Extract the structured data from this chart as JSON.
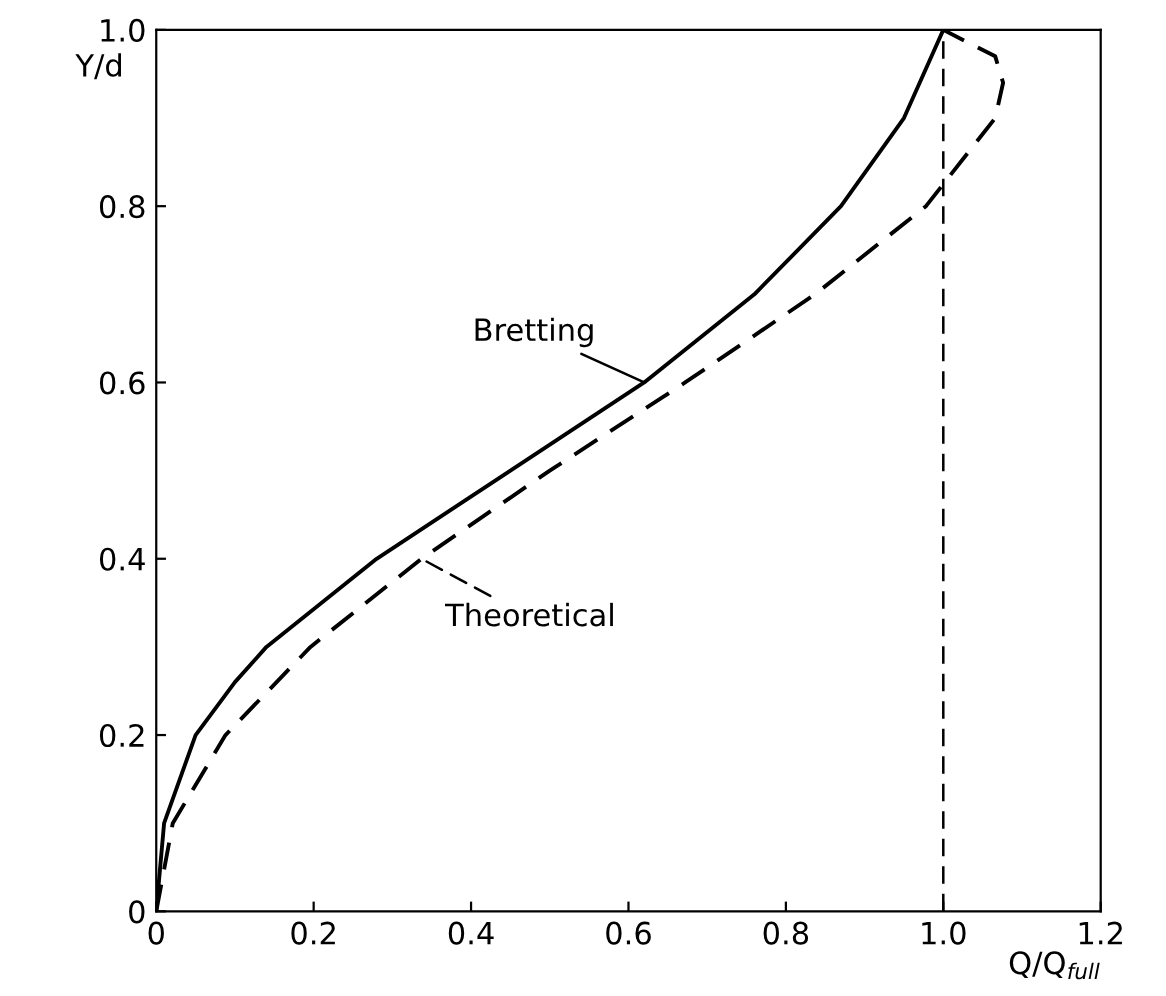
{
  "chart_data": {
    "type": "line",
    "xlabel": "Q/Q$_{full}$",
    "ylabel": "Y/d",
    "xlim": [
      0,
      1.2
    ],
    "ylim": [
      0,
      1.0
    ],
    "xticks": [
      0,
      0.2,
      0.4,
      0.6,
      0.8,
      {
        "value": 1.0,
        "label": "1.0"
      },
      1.2
    ],
    "yticks": [
      0,
      0.2,
      0.4,
      0.6,
      0.8,
      {
        "value": 1.0,
        "label": "1.0"
      }
    ],
    "grid": false,
    "series": [
      {
        "name": "Bretting",
        "color": "#000000",
        "line_style": "solid",
        "x": [
          0,
          0.01,
          0.05,
          0.1,
          0.14,
          0.28,
          0.45,
          0.62,
          0.76,
          0.87,
          0.95,
          1.0
        ],
        "values": [
          0,
          0.1,
          0.2,
          0.26,
          0.3,
          0.4,
          0.5,
          0.6,
          0.7,
          0.8,
          0.9,
          1.0
        ]
      },
      {
        "name": "Theoretical",
        "color": "#000000",
        "line_style": "dashed",
        "x": [
          0,
          0.021,
          0.088,
          0.196,
          0.337,
          0.5,
          0.672,
          0.837,
          0.978,
          1.066,
          1.076,
          1.066,
          1.0
        ],
        "values": [
          0,
          0.1,
          0.2,
          0.3,
          0.4,
          0.5,
          0.6,
          0.7,
          0.8,
          0.9,
          0.94,
          0.97,
          1.0
        ]
      }
    ],
    "ref_lines": [
      {
        "axis": "x",
        "value": 1.0,
        "line_style": "dashed",
        "color": "#000000"
      }
    ]
  }
}
